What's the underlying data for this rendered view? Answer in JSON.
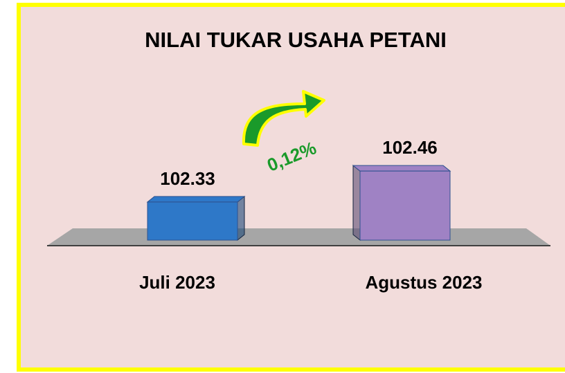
{
  "chart_data": {
    "type": "bar3d",
    "title": "NILAI TUKAR USAHA PETANI",
    "categories": [
      "Juli 2023",
      "Agustus 2023"
    ],
    "values": [
      102.33,
      102.46
    ],
    "colors": [
      "#2e78c8",
      "#9f82c4"
    ],
    "ylim": [
      102.17,
      102.6
    ],
    "annotation": "0,12%"
  }
}
